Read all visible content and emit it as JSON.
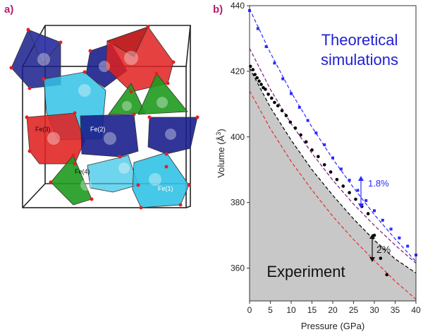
{
  "panel_a": {
    "label": "a)",
    "site_labels": [
      "Fe(3)",
      "Fe(2)",
      "Fe(4)",
      "Fe(1)"
    ],
    "colors": {
      "red": "#e02020",
      "blue": "#1a1f8c",
      "cyan": "#32c2e6",
      "green": "#1e9a1e",
      "atom": "#e02020"
    }
  },
  "panel_b": {
    "label": "b)",
    "legend_theory": [
      "Theoretical",
      "simulations"
    ],
    "experiment_label": "Experiment",
    "annotation_top": "1.8%",
    "annotation_bottom": "2%",
    "colors": {
      "theory_text": "#1f1fd6",
      "blue_series": "#2a2aff",
      "purple_series": "#7a1a7a",
      "red_series": "#e03030",
      "experiment": "#000000",
      "fill": "#c8c8c8",
      "annot_blue": "#2a2aff"
    }
  },
  "chart_data": {
    "type": "scatter",
    "xlabel": "Pressure (GPa)",
    "ylabel": "Volume (Å³)",
    "ylabel_main": "Volume (Å",
    "ylabel_sup": "3",
    "ylabel_end": ")",
    "xlim": [
      0,
      40
    ],
    "ylim": [
      350,
      440
    ],
    "xticks": [
      0,
      5,
      10,
      15,
      20,
      25,
      30,
      35,
      40
    ],
    "yticks": [
      360,
      380,
      400,
      420,
      440
    ],
    "series": [
      {
        "kind": "line",
        "dashed": true,
        "color": "#2a2aff",
        "x": [
          0,
          5,
          10,
          15,
          20,
          25,
          30,
          35,
          40
        ],
        "y": [
          439,
          425.6,
          413.6,
          403,
          393.3,
          384.5,
          376.3,
          368.9,
          362
        ]
      },
      {
        "kind": "points",
        "color": "#2a2aff",
        "x": [
          0,
          2,
          4,
          6,
          8,
          10,
          12,
          14,
          16,
          18,
          20,
          22,
          24,
          26,
          28,
          30,
          32,
          34,
          36,
          38,
          40
        ],
        "y": [
          438.5,
          433,
          427.5,
          422.5,
          417.7,
          413.2,
          409,
          405,
          401.2,
          397.6,
          393.6,
          390.2,
          386.8,
          383.7,
          380.6,
          377.5,
          374.6,
          371.9,
          369.2,
          366.7,
          364
        ]
      },
      {
        "kind": "line",
        "dashed": true,
        "color": "#7a1a7a",
        "x": [
          0,
          5,
          10,
          15,
          20,
          25,
          30,
          35,
          40
        ],
        "y": [
          427,
          414.5,
          404,
          395,
          386.8,
          379.5,
          373,
          367,
          361.5
        ]
      },
      {
        "kind": "line",
        "dashed": true,
        "color": "#e03030",
        "x": [
          0,
          5,
          10,
          15,
          20,
          25,
          30,
          35,
          40
        ],
        "y": [
          414,
          402.5,
          392.5,
          383.8,
          375.8,
          368.7,
          362.3,
          356,
          350.5
        ]
      },
      {
        "kind": "line",
        "dashed": true,
        "color": "#000000",
        "x": [
          0,
          5,
          10,
          15,
          20,
          25,
          30,
          35,
          40
        ],
        "y": [
          421,
          409,
          399,
          390,
          382.2,
          375,
          368.5,
          362.8,
          358.5
        ]
      },
      {
        "kind": "points",
        "color": "#000000",
        "x": [
          0.2,
          0.8,
          1.3,
          1.8,
          2.3,
          2.8,
          3.3,
          3.8,
          4.5,
          5.3,
          6.0,
          6.8,
          7.8,
          8.8,
          9.8,
          11,
          12.3,
          13.6,
          15,
          16.5,
          18,
          19.5,
          21,
          22.5,
          24,
          25.5,
          27,
          28.5,
          30,
          31.5,
          33
        ],
        "y": [
          421.5,
          420.5,
          419,
          418,
          417,
          416,
          415,
          414.5,
          413,
          411.8,
          410.5,
          409.5,
          408,
          406.5,
          404.5,
          402.7,
          400.6,
          398.5,
          396,
          394,
          391.5,
          389.3,
          387,
          385,
          383,
          381,
          378.8,
          376.6,
          370,
          363,
          358
        ]
      }
    ]
  }
}
